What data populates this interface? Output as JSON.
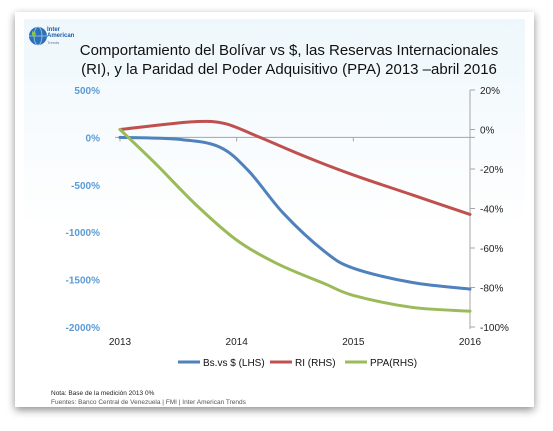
{
  "logo": {
    "line1": "Inter",
    "line2": "American",
    "line3": "Trends"
  },
  "chart_data": {
    "type": "line",
    "title_line1": "Comportamiento del  Bolívar vs $, las Reservas Internacionales",
    "title_line2": "(RI), y la  Paridad del Poder Adquisitivo (PPA)  2013 –abril 2016",
    "categories": [
      "2013",
      "2014",
      "2015",
      "2016"
    ],
    "y_left": {
      "ticks": [
        500,
        0,
        -500,
        -1000,
        -1500,
        -2000
      ],
      "tick_labels": [
        "500%",
        "0%",
        "-500%",
        "-1000%",
        "-1500%",
        "-2000%"
      ],
      "range": [
        -2000,
        500
      ],
      "color": "#5b9bd5"
    },
    "y_right": {
      "ticks": [
        20,
        0,
        -20,
        -40,
        -60,
        -80,
        -100
      ],
      "tick_labels": [
        "20%",
        "0%",
        "-20%",
        "-40%",
        "-60%",
        "-80%",
        "-100%"
      ],
      "range": [
        -100,
        20
      ]
    },
    "series": [
      {
        "name": "Bs.vs $ (LHS)",
        "axis": "left",
        "color": "#4f81bd",
        "points": [
          [
            2013.0,
            0
          ],
          [
            2013.5,
            -20
          ],
          [
            2013.85,
            -100
          ],
          [
            2014.1,
            -350
          ],
          [
            2014.4,
            -800
          ],
          [
            2014.75,
            -1200
          ],
          [
            2015.0,
            -1380
          ],
          [
            2015.5,
            -1530
          ],
          [
            2016.0,
            -1600
          ]
        ]
      },
      {
        "name": "RI (RHS)",
        "axis": "right",
        "color": "#c0504d",
        "points": [
          [
            2013.0,
            0
          ],
          [
            2013.3,
            2
          ],
          [
            2013.65,
            4
          ],
          [
            2013.9,
            3
          ],
          [
            2014.2,
            -4
          ],
          [
            2014.6,
            -14
          ],
          [
            2015.0,
            -23
          ],
          [
            2015.5,
            -33
          ],
          [
            2016.0,
            -43
          ]
        ]
      },
      {
        "name": "PPA(RHS)",
        "axis": "right",
        "color": "#9bbb59",
        "points": [
          [
            2013.0,
            0
          ],
          [
            2013.3,
            -17
          ],
          [
            2013.65,
            -38
          ],
          [
            2014.0,
            -56
          ],
          [
            2014.35,
            -68
          ],
          [
            2014.75,
            -78
          ],
          [
            2015.0,
            -84
          ],
          [
            2015.5,
            -90
          ],
          [
            2016.0,
            -92
          ]
        ]
      }
    ],
    "legend_position": "bottom",
    "grid": false
  },
  "notes": {
    "line1": "Nota: Base de  la medición 2013 0%",
    "line2": "Fuentes: Banco Central de Venezuela | FMI | Inter American Trends"
  }
}
